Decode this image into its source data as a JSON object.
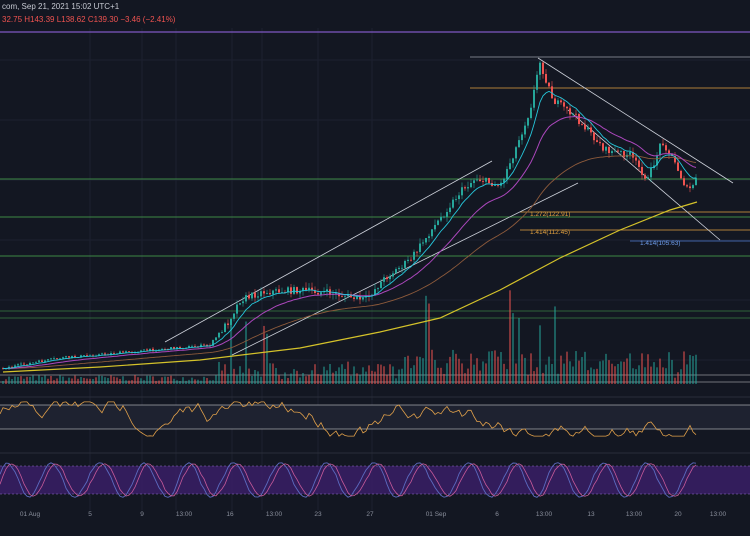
{
  "header": {
    "symbol_fragment": "com, Sep 21, 2021 15:02 UTC+1",
    "ohlc_fragment": "32.75  H143.39  L138.62  C139.30  −3.46 (−2.41%)"
  },
  "colors": {
    "background": "#131722",
    "candle_up": "#26a69a",
    "candle_down": "#ef5350",
    "ema_fast": "#26c6da",
    "ema_mid": "#ab47bc",
    "ema_slow": "#8d5a3b",
    "ma_long": "#d4c22a",
    "rsi_line": "#e0a04a",
    "stoch_k": "#5c6bc0",
    "stoch_d": "#c75a9a",
    "stoch_band": "#4a2a80",
    "level_green": "#4caf50",
    "level_orange": "#e0a040",
    "level_blue": "#4f7cd0",
    "level_purple": "#7e57c2",
    "trendline": "#cfd3dc"
  },
  "chart_data": {
    "type": "candlestick",
    "x_axis_labels": [
      "01 Aug",
      "5",
      "9",
      "13:00",
      "16",
      "13:00",
      "23",
      "27",
      "01 Sep",
      "6",
      "13:00",
      "13",
      "13:00",
      "20",
      "13:00"
    ],
    "price_levels": [
      {
        "label": "1.272(122.91)",
        "price": 122.91,
        "color": "orange"
      },
      {
        "label": "1.414(112.45)",
        "price": 112.45,
        "color": "orange"
      },
      {
        "label": "1.414(105.63)",
        "price": 105.63,
        "color": "blue"
      }
    ],
    "panels": [
      "price",
      "volume",
      "rsi",
      "stoch_rsi"
    ]
  }
}
